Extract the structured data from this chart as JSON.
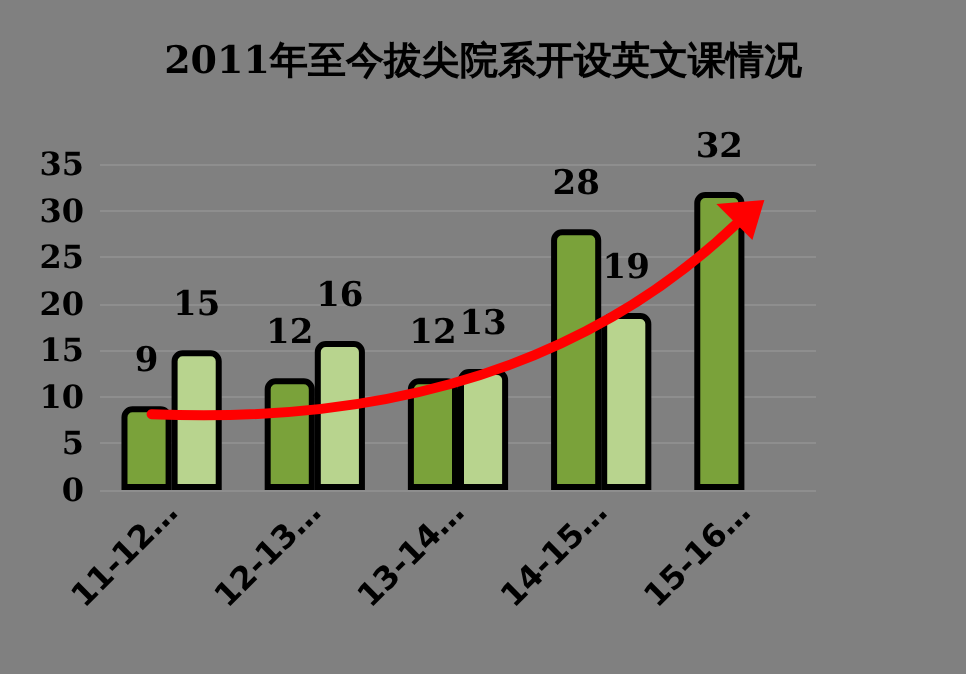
{
  "chart_data": {
    "type": "bar",
    "title": "2011年至今拔尖院系开设英文课情况",
    "categories": [
      "11-12…",
      "12-13…",
      "13-14…",
      "14-15…",
      "15-16…"
    ],
    "series": [
      {
        "color": "#7aa23a",
        "values": [
          9,
          12,
          12,
          28,
          32
        ]
      },
      {
        "color": "#b8d48e",
        "values": [
          15,
          16,
          13,
          19,
          null
        ]
      }
    ],
    "ylim": [
      0,
      35
    ],
    "yticks": [
      0,
      5,
      10,
      15,
      20,
      25,
      30,
      35
    ],
    "grid": "y",
    "data_labels": true
  }
}
